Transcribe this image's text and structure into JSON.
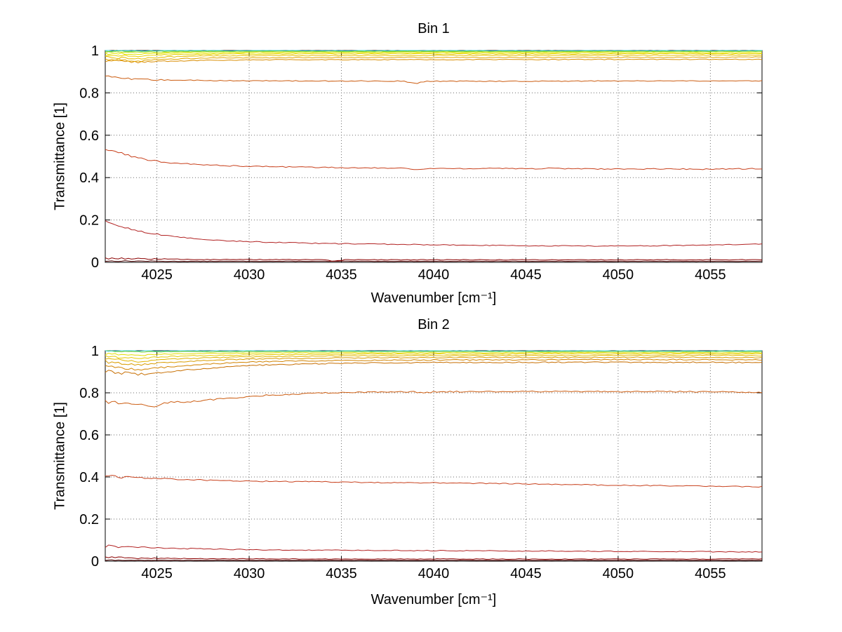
{
  "figure": {
    "background": "#FFFFFF"
  },
  "chart_data": [
    {
      "type": "line",
      "title": "Bin 1",
      "xlabel": "Wavenumber [cm⁻¹]",
      "ylabel": "Transmittance [1]",
      "xlim": [
        4022.2,
        4057.8
      ],
      "ylim": [
        0,
        1
      ],
      "xticks": [
        4025,
        4030,
        4035,
        4040,
        4045,
        4050,
        4055
      ],
      "yticks": [
        0,
        0.2,
        0.4,
        0.6,
        0.8,
        1
      ],
      "grid": true,
      "legend": "none",
      "x": [
        4022.2,
        4024,
        4025.5,
        4027,
        4029,
        4031,
        4034,
        4037,
        4040,
        4043,
        4046,
        4049,
        4052,
        4055,
        4057.8
      ],
      "series": [
        {
          "name": "b1-s01",
          "color": "#4D0000",
          "jitter": 0.0008,
          "y": [
            0.006,
            0.006,
            0.005,
            0.005,
            0.005,
            0.005,
            0.005,
            0.005,
            0.005,
            0.005,
            0.005,
            0.005,
            0.005,
            0.005,
            0.005
          ]
        },
        {
          "name": "b1-s02",
          "color": "#8B0000",
          "jitter": 0.0015,
          "y": [
            0.02,
            0.017,
            0.015,
            0.014,
            0.013,
            0.013,
            0.012,
            0.012,
            0.012,
            0.012,
            0.012,
            0.012,
            0.012,
            0.012,
            0.012
          ],
          "spikes": [
            {
              "x": 4034.6,
              "dy": -0.007
            }
          ]
        },
        {
          "name": "b1-s03",
          "color": "#B22222",
          "jitter": 0.002,
          "y": [
            0.19,
            0.148,
            0.125,
            0.112,
            0.101,
            0.095,
            0.089,
            0.086,
            0.083,
            0.08,
            0.078,
            0.077,
            0.078,
            0.082,
            0.086
          ]
        },
        {
          "name": "b1-s04",
          "color": "#C8401C",
          "jitter": 0.0025,
          "y": [
            0.535,
            0.492,
            0.472,
            0.462,
            0.456,
            0.452,
            0.448,
            0.446,
            0.443,
            0.443,
            0.442,
            0.441,
            0.441,
            0.44,
            0.442
          ],
          "spikes": [
            {
              "x": 4039,
              "dy": -0.007
            },
            {
              "x": 4046.5,
              "dy": 0.005
            }
          ]
        },
        {
          "name": "b1-s05",
          "color": "#CC5C10",
          "jitter": 0.002,
          "y": [
            0.876,
            0.863,
            0.861,
            0.859,
            0.858,
            0.857,
            0.856,
            0.856,
            0.855,
            0.855,
            0.855,
            0.856,
            0.856,
            0.856,
            0.857
          ],
          "spikes": [
            {
              "x": 4039,
              "dy": -0.012
            }
          ]
        },
        {
          "name": "b1-s06",
          "color": "#D98C00",
          "jitter": 0.002,
          "y": [
            0.952,
            0.944,
            0.95,
            0.953,
            0.955,
            0.956,
            0.957,
            0.957,
            0.957,
            0.957,
            0.957,
            0.958,
            0.958,
            0.958,
            0.958
          ]
        },
        {
          "name": "b1-s07",
          "color": "#E0A500",
          "jitter": 0.002,
          "y": [
            0.96,
            0.951,
            0.959,
            0.963,
            0.965,
            0.966,
            0.967,
            0.967,
            0.967,
            0.967,
            0.968,
            0.968,
            0.968,
            0.968,
            0.969
          ]
        },
        {
          "name": "b1-s08",
          "color": "#E6BE00",
          "jitter": 0.0018,
          "y": [
            0.968,
            0.962,
            0.97,
            0.973,
            0.975,
            0.976,
            0.976,
            0.977,
            0.977,
            0.977,
            0.977,
            0.977,
            0.978,
            0.978,
            0.978
          ]
        },
        {
          "name": "b1-s09",
          "color": "#E6D200",
          "jitter": 0.0015,
          "y": [
            0.978,
            0.974,
            0.98,
            0.982,
            0.983,
            0.983,
            0.984,
            0.984,
            0.984,
            0.984,
            0.984,
            0.984,
            0.985,
            0.985,
            0.985
          ]
        },
        {
          "name": "b1-s10",
          "color": "#E6E600",
          "jitter": 0.0015,
          "y": [
            0.986,
            0.983,
            0.987,
            0.988,
            0.989,
            0.989,
            0.99,
            0.99,
            0.99,
            0.99,
            0.99,
            0.99,
            0.99,
            0.99,
            0.99
          ]
        },
        {
          "name": "b1-s11",
          "color": "#C2DD18",
          "jitter": 0.0012,
          "y": [
            0.993,
            0.992,
            0.993,
            0.994,
            0.994,
            0.994,
            0.994,
            0.994,
            0.994,
            0.994,
            0.994,
            0.994,
            0.995,
            0.995,
            0.995
          ]
        },
        {
          "name": "b1-s12",
          "color": "#66CC33",
          "jitter": 0.0012,
          "y": [
            0.997,
            0.996,
            0.997,
            0.997,
            0.997,
            0.997,
            0.997,
            0.997,
            0.997,
            0.997,
            0.997,
            0.997,
            0.997,
            0.997,
            0.997
          ]
        },
        {
          "name": "b1-s13",
          "color": "#33CCCC",
          "jitter": 0.001,
          "y": [
            1.0,
            0.999,
            0.999,
            1.0,
            0.999,
            1.0,
            0.999,
            0.999,
            1.0,
            0.999,
            0.999,
            1.0,
            0.999,
            0.999,
            1.0
          ]
        }
      ]
    },
    {
      "type": "line",
      "title": "Bin 2",
      "xlabel": "Wavenumber [cm⁻¹]",
      "ylabel": "Transmittance [1]",
      "xlim": [
        4022.2,
        4057.8
      ],
      "ylim": [
        0,
        1
      ],
      "xticks": [
        4025,
        4030,
        4035,
        4040,
        4045,
        4050,
        4055
      ],
      "yticks": [
        0,
        0.2,
        0.4,
        0.6,
        0.8,
        1
      ],
      "grid": true,
      "legend": "none",
      "x": [
        4022.2,
        4024,
        4025.5,
        4027,
        4029,
        4031,
        4034,
        4037,
        4040,
        4043,
        4046,
        4049,
        4052,
        4055,
        4057.8
      ],
      "series": [
        {
          "name": "b2-s01",
          "color": "#4D0000",
          "jitter": 0.0008,
          "y": [
            0.004,
            0.004,
            0.004,
            0.004,
            0.004,
            0.004,
            0.004,
            0.004,
            0.004,
            0.004,
            0.004,
            0.004,
            0.004,
            0.004,
            0.004
          ]
        },
        {
          "name": "b2-s02",
          "color": "#8B0000",
          "jitter": 0.0015,
          "y": [
            0.018,
            0.014,
            0.013,
            0.012,
            0.011,
            0.011,
            0.01,
            0.01,
            0.01,
            0.01,
            0.01,
            0.01,
            0.01,
            0.01,
            0.01
          ]
        },
        {
          "name": "b2-s03",
          "color": "#B22222",
          "jitter": 0.002,
          "y": [
            0.071,
            0.066,
            0.062,
            0.059,
            0.056,
            0.054,
            0.052,
            0.051,
            0.05,
            0.049,
            0.048,
            0.047,
            0.046,
            0.045,
            0.044
          ]
        },
        {
          "name": "b2-s04",
          "color": "#C8401C",
          "jitter": 0.0025,
          "y": [
            0.405,
            0.396,
            0.391,
            0.386,
            0.382,
            0.379,
            0.377,
            0.374,
            0.372,
            0.369,
            0.366,
            0.362,
            0.359,
            0.356,
            0.354
          ]
        },
        {
          "name": "b2-s05",
          "color": "#CC5C10",
          "jitter": 0.003,
          "y": [
            0.757,
            0.74,
            0.753,
            0.76,
            0.775,
            0.789,
            0.799,
            0.803,
            0.805,
            0.806,
            0.806,
            0.806,
            0.806,
            0.805,
            0.801
          ],
          "spikes": [
            {
              "x": 4024.8,
              "dy": -0.012
            },
            {
              "x": 4039.5,
              "dy": -0.006
            }
          ]
        },
        {
          "name": "b2-s06",
          "color": "#C76E00",
          "jitter": 0.0028,
          "y": [
            0.903,
            0.887,
            0.899,
            0.911,
            0.925,
            0.933,
            0.939,
            0.942,
            0.944,
            0.944,
            0.945,
            0.945,
            0.945,
            0.945,
            0.943
          ]
        },
        {
          "name": "b2-s07",
          "color": "#D28300",
          "jitter": 0.0025,
          "y": [
            0.928,
            0.911,
            0.922,
            0.932,
            0.943,
            0.949,
            0.953,
            0.955,
            0.956,
            0.957,
            0.957,
            0.958,
            0.958,
            0.958,
            0.956
          ]
        },
        {
          "name": "b2-s08",
          "color": "#D99C00",
          "jitter": 0.0022,
          "y": [
            0.948,
            0.933,
            0.944,
            0.951,
            0.958,
            0.962,
            0.965,
            0.967,
            0.967,
            0.968,
            0.968,
            0.968,
            0.969,
            0.969,
            0.967
          ]
        },
        {
          "name": "b2-s09",
          "color": "#E0B400",
          "jitter": 0.002,
          "y": [
            0.962,
            0.949,
            0.959,
            0.964,
            0.969,
            0.972,
            0.975,
            0.976,
            0.976,
            0.977,
            0.977,
            0.977,
            0.978,
            0.978,
            0.976
          ]
        },
        {
          "name": "b2-s10",
          "color": "#E6CA00",
          "jitter": 0.0018,
          "y": [
            0.974,
            0.964,
            0.972,
            0.976,
            0.979,
            0.981,
            0.983,
            0.984,
            0.984,
            0.984,
            0.985,
            0.985,
            0.985,
            0.985,
            0.984
          ]
        },
        {
          "name": "b2-s11",
          "color": "#E3DC00",
          "jitter": 0.0015,
          "y": [
            0.985,
            0.978,
            0.984,
            0.986,
            0.988,
            0.989,
            0.99,
            0.99,
            0.99,
            0.99,
            0.991,
            0.991,
            0.991,
            0.991,
            0.99
          ]
        },
        {
          "name": "b2-s12",
          "color": "#7ECC29",
          "jitter": 0.0012,
          "y": [
            1.0,
            0.994,
            0.995,
            0.995,
            0.995,
            0.996,
            0.996,
            0.996,
            0.996,
            0.996,
            0.996,
            0.996,
            0.996,
            0.996,
            0.996
          ]
        },
        {
          "name": "b2-s13",
          "color": "#33CCCC",
          "jitter": 0.001,
          "y": [
            1.0,
            0.999,
            0.999,
            1.0,
            0.999,
            1.0,
            0.999,
            0.999,
            1.0,
            0.999,
            0.999,
            1.0,
            0.999,
            0.999,
            1.0
          ]
        }
      ]
    }
  ]
}
